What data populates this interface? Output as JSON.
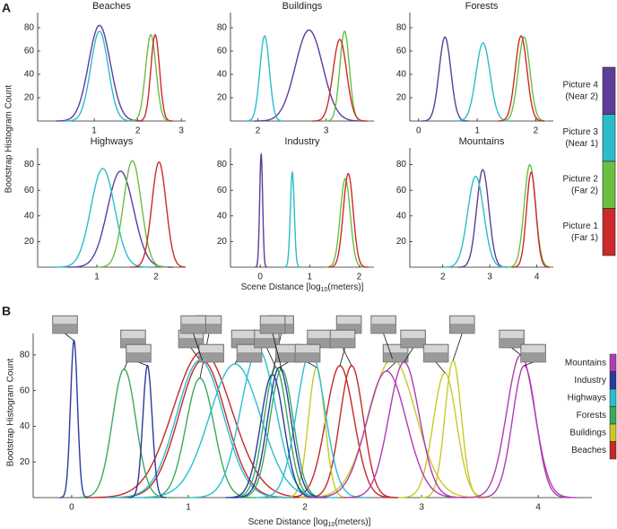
{
  "panel_a_label": "A",
  "panel_b_label": "B",
  "panel_a": {
    "ylabel": "Bootstrap Histogram Count",
    "xlabel": [
      "Scene Distance [log",
      "10",
      "(meters)]"
    ],
    "legend": [
      {
        "label": [
          "Picture 4",
          "(Near 2)"
        ],
        "color": "#5e3c99"
      },
      {
        "label": [
          "Picture 3",
          "(Near 1)"
        ],
        "color": "#2bbccc"
      },
      {
        "label": [
          "Picture 2",
          "(Far 2)"
        ],
        "color": "#6abf40"
      },
      {
        "label": [
          "Picture 1",
          "(Far 1)"
        ],
        "color": "#cc2a2a"
      }
    ]
  },
  "chart_data": [
    {
      "type": "line",
      "title": "Beaches",
      "color": "#c62828",
      "xlim": [
        -0.3,
        3.1
      ],
      "ylim": [
        0,
        93
      ],
      "xticks": [
        1,
        2,
        3
      ],
      "yticks": [
        20,
        40,
        60,
        80
      ],
      "series": [
        {
          "mean": 1.12,
          "sd": 0.25,
          "peak": 82
        },
        {
          "mean": 1.12,
          "sd": 0.2,
          "peak": 77
        },
        {
          "mean": 2.3,
          "sd": 0.12,
          "peak": 74
        },
        {
          "mean": 2.4,
          "sd": 0.1,
          "peak": 74
        }
      ]
    },
    {
      "type": "line",
      "title": "Buildings",
      "color": "#c8c82a",
      "xlim": [
        1.6,
        3.7
      ],
      "ylim": [
        0,
        93
      ],
      "xticks": [
        2,
        3
      ],
      "yticks": [
        20,
        40,
        60,
        80
      ],
      "series": [
        {
          "mean": 2.75,
          "sd": 0.2,
          "peak": 78
        },
        {
          "mean": 2.1,
          "sd": 0.07,
          "peak": 73
        },
        {
          "mean": 3.27,
          "sd": 0.07,
          "peak": 77
        },
        {
          "mean": 3.2,
          "sd": 0.1,
          "peak": 70
        }
      ]
    },
    {
      "type": "line",
      "title": "Forests",
      "color": "#3aaa5a",
      "xlim": [
        -0.15,
        2.3
      ],
      "ylim": [
        0,
        93
      ],
      "xticks": [
        0,
        1,
        2
      ],
      "yticks": [
        20,
        40,
        60,
        80
      ],
      "series": [
        {
          "mean": 0.45,
          "sd": 0.1,
          "peak": 72
        },
        {
          "mean": 1.1,
          "sd": 0.12,
          "peak": 67
        },
        {
          "mean": 1.8,
          "sd": 0.1,
          "peak": 72
        },
        {
          "mean": 1.75,
          "sd": 0.1,
          "peak": 73
        }
      ]
    },
    {
      "type": "line",
      "title": "Highways",
      "color": "#2abfcf",
      "xlim": [
        0,
        2.5
      ],
      "ylim": [
        0,
        93
      ],
      "xticks": [
        1,
        2
      ],
      "yticks": [
        20,
        40,
        60,
        80
      ],
      "series": [
        {
          "mean": 1.4,
          "sd": 0.22,
          "peak": 75
        },
        {
          "mean": 1.1,
          "sd": 0.2,
          "peak": 77
        },
        {
          "mean": 1.6,
          "sd": 0.15,
          "peak": 83
        },
        {
          "mean": 2.05,
          "sd": 0.12,
          "peak": 82
        }
      ]
    },
    {
      "type": "line",
      "title": "Industry",
      "color": "#2a3c9c",
      "xlim": [
        -0.6,
        2.3
      ],
      "ylim": [
        0,
        93
      ],
      "xticks": [
        0,
        1,
        2
      ],
      "yticks": [
        20,
        40,
        60,
        80
      ],
      "series": [
        {
          "mean": 0.02,
          "sd": 0.03,
          "peak": 88
        },
        {
          "mean": 0.65,
          "sd": 0.04,
          "peak": 74
        },
        {
          "mean": 1.72,
          "sd": 0.1,
          "peak": 69
        },
        {
          "mean": 1.78,
          "sd": 0.1,
          "peak": 73
        }
      ]
    },
    {
      "type": "line",
      "title": "Mountains",
      "color": "#b03cb4",
      "xlim": [
        1.3,
        4.35
      ],
      "ylim": [
        0,
        93
      ],
      "xticks": [
        2,
        3,
        4
      ],
      "yticks": [
        20,
        40,
        60,
        80
      ],
      "series": [
        {
          "mean": 2.85,
          "sd": 0.13,
          "peak": 76
        },
        {
          "mean": 2.7,
          "sd": 0.17,
          "peak": 71
        },
        {
          "mean": 3.85,
          "sd": 0.12,
          "peak": 80
        },
        {
          "mean": 3.88,
          "sd": 0.1,
          "peak": 74
        }
      ]
    },
    {
      "type": "overview",
      "ylabel": "Bootstrap Histogram Count",
      "xlabel": [
        "Scene Distance [log",
        "10",
        "(meters)]"
      ],
      "xlim": [
        -0.33,
        4.46
      ],
      "ylim": [
        0,
        92
      ],
      "xticks": [
        0,
        1,
        2,
        3,
        4
      ],
      "yticks": [
        20,
        40,
        60,
        80
      ]
    }
  ]
}
